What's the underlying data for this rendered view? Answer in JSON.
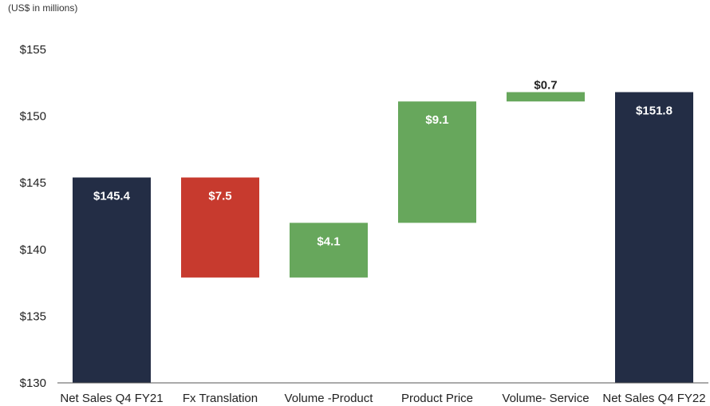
{
  "chart_data": {
    "type": "bar",
    "subtype": "waterfall",
    "unit_note": "(US$ in millions)",
    "ylim": [
      130,
      155
    ],
    "yticks": [
      130,
      135,
      140,
      145,
      150,
      155
    ],
    "ytick_labels": [
      "$130",
      "$135",
      "$140",
      "$145",
      "$150",
      "$155"
    ],
    "grid": false,
    "categories": [
      "Net Sales Q4 FY21",
      "Fx Translation",
      "Volume -Product",
      "Product Price",
      "Volume- Service",
      "Net Sales Q4 FY22"
    ],
    "bars": [
      {
        "kind": "total",
        "base": 130,
        "top": 145.4,
        "label": "$145.4",
        "color": "#232d45",
        "label_color": "#ffffff"
      },
      {
        "kind": "decrease",
        "base": 137.9,
        "top": 145.4,
        "label": "$7.5",
        "color": "#c73a2e",
        "label_color": "#ffffff"
      },
      {
        "kind": "increase",
        "base": 137.9,
        "top": 142.0,
        "label": "$4.1",
        "color": "#67a75c",
        "label_color": "#ffffff"
      },
      {
        "kind": "increase",
        "base": 142.0,
        "top": 151.1,
        "label": "$9.1",
        "color": "#67a75c",
        "label_color": "#ffffff"
      },
      {
        "kind": "increase",
        "base": 151.1,
        "top": 151.8,
        "label": "$0.7",
        "color": "#67a75c",
        "label_color": "#222222"
      },
      {
        "kind": "total",
        "base": 130,
        "top": 151.8,
        "label": "$151.8",
        "color": "#232d45",
        "label_color": "#ffffff"
      }
    ]
  }
}
